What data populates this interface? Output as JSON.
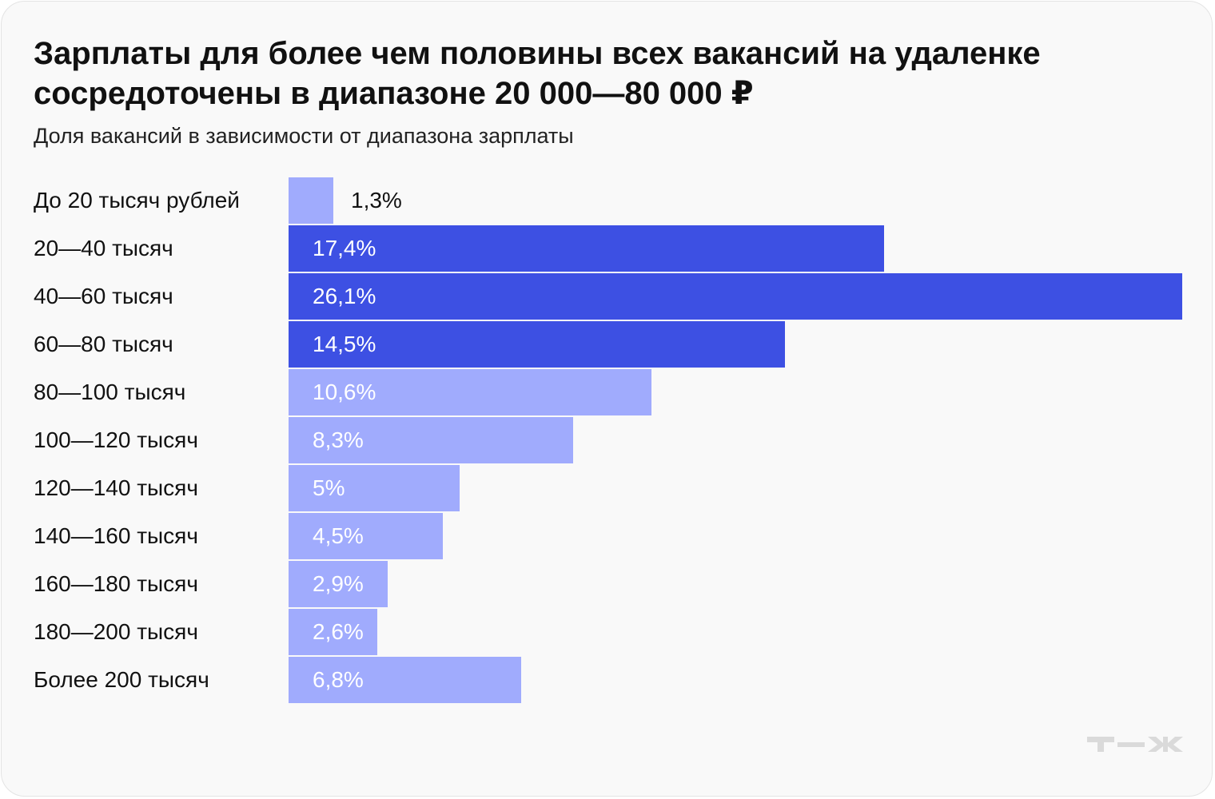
{
  "title": "Зарплаты для более чем половины всех вакансий на удаленке сосредоточены в диапазоне 20 000—80 000 ₽",
  "subtitle": "Доля вакансий в зависимости от диапазона зарплаты",
  "logo_text": "т—ж",
  "colors": {
    "highlight": "#3d50e3",
    "regular": "#a0abfd",
    "background": "#f9f9f9"
  },
  "chart_data": {
    "type": "bar",
    "orientation": "horizontal",
    "title": "Зарплаты для более чем половины всех вакансий на удаленке сосредоточены в диапазоне 20 000—80 000 ₽",
    "subtitle": "Доля вакансий в зависимости от диапазона зарплаты",
    "categories": [
      "До 20 тысяч рублей",
      "20—40 тысяч",
      "40—60 тысяч",
      "60—80 тысяч",
      "80—100 тысяч",
      "100—120 тысяч",
      "120—140 тысяч",
      "140—160 тысяч",
      "160—180 тысяч",
      "180—200 тысяч",
      "Более 200 тысяч"
    ],
    "values": [
      1.3,
      17.4,
      26.1,
      14.5,
      10.6,
      8.3,
      5,
      4.5,
      2.9,
      2.6,
      6.8
    ],
    "labels": [
      "1,3%",
      "17,4%",
      "26,1%",
      "14,5%",
      "10,6%",
      "8,3%",
      "5%",
      "4,5%",
      "2,9%",
      "2,6%",
      "6,8%"
    ],
    "highlighted": [
      false,
      true,
      true,
      true,
      false,
      false,
      false,
      false,
      false,
      false,
      false
    ],
    "unit": "%",
    "grid": false,
    "legend": "none"
  }
}
